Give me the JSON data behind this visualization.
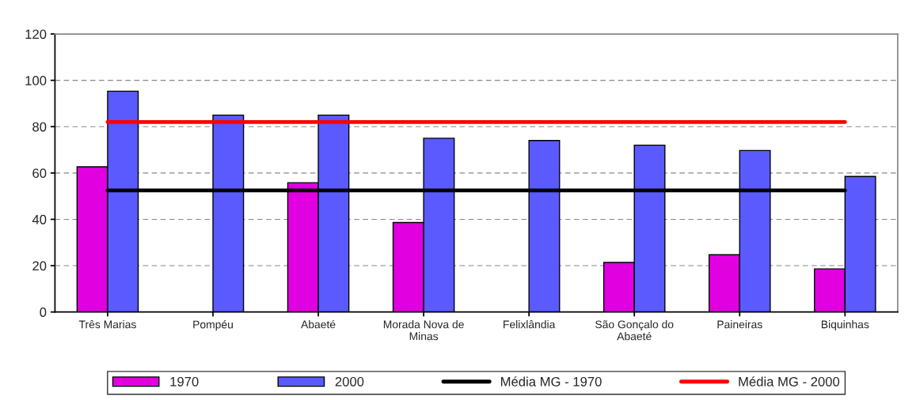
{
  "chart_data": {
    "type": "bar",
    "categories": [
      "Três Marias",
      "Pompéu",
      "Abaeté",
      "Morada Nova de\nMinas",
      "Felixlândia",
      "São Gonçalo do\nAbaeté",
      "Paineiras",
      "Biquinhas"
    ],
    "series": [
      {
        "name": "1970",
        "color": "#e000e0",
        "values": [
          62.7,
          null,
          55.8,
          38.6,
          null,
          21.4,
          24.7,
          18.6
        ]
      },
      {
        "name": "2000",
        "color": "#5a5aff",
        "values": [
          95.3,
          85,
          85,
          75,
          74,
          72,
          69.7,
          58.5
        ]
      },
      {
        "name": "Média MG - 1970",
        "type": "line",
        "color": "#000000",
        "values": [
          52.5,
          52.5,
          52.5,
          52.5,
          52.5,
          52.5,
          52.5,
          52.5
        ]
      },
      {
        "name": "Média MG - 2000",
        "type": "line",
        "color": "#ff0000",
        "values": [
          82,
          82,
          82,
          82,
          82,
          82,
          82,
          82
        ]
      }
    ],
    "ylim": [
      0,
      120
    ],
    "yticks": [
      0,
      20,
      40,
      60,
      80,
      100,
      120
    ],
    "grid": "y",
    "legend": "bottom"
  }
}
